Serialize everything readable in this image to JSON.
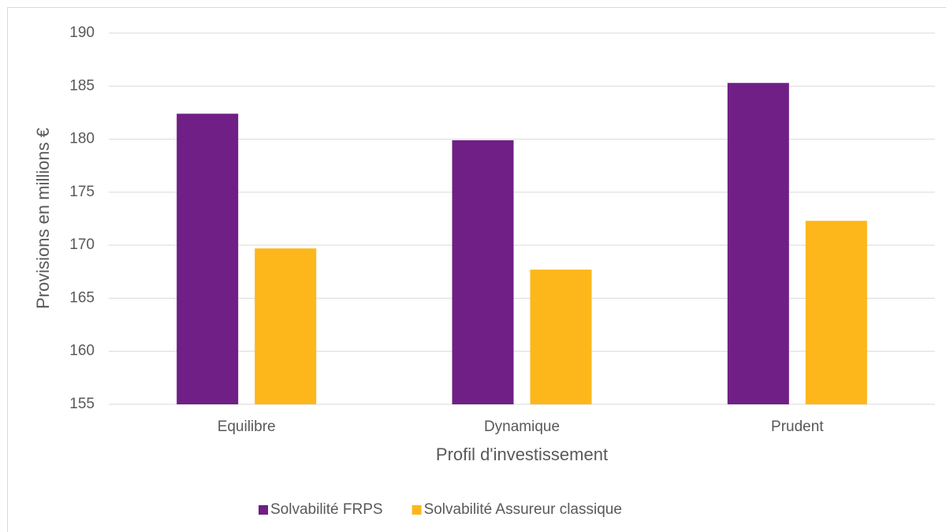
{
  "chart_data": {
    "type": "bar",
    "categories": [
      "Equilibre",
      "Dynamique",
      "Prudent"
    ],
    "series": [
      {
        "name": "Solvabilité FRPS",
        "color": "#6f1f85",
        "values": [
          182.4,
          179.9,
          185.3
        ]
      },
      {
        "name": "Solvabilité Assureur classique",
        "color": "#fdb71b",
        "values": [
          169.7,
          167.7,
          172.3
        ]
      }
    ],
    "x_label": "Profil d'investissement",
    "y_label": "Provisions en millions €",
    "ylim": [
      155,
      190
    ],
    "yticks": [
      155,
      160,
      165,
      170,
      175,
      180,
      185,
      190
    ],
    "grid": true,
    "legend": "bottom"
  }
}
